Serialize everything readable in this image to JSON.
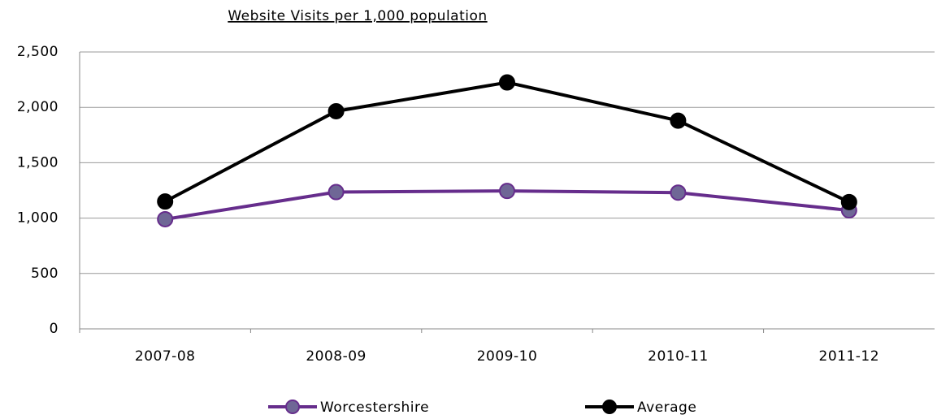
{
  "chart_data": {
    "type": "line",
    "title": "Website Visits per 1,000 population",
    "categories": [
      "2007-08",
      "2008-09",
      "2009-10",
      "2010-11",
      "2011-12"
    ],
    "series": [
      {
        "name": "Worcestershire",
        "color": "#662d8c",
        "marker_fill": "#6f6796",
        "values": [
          990,
          1235,
          1245,
          1230,
          1070
        ]
      },
      {
        "name": "Average",
        "color": "#000000",
        "marker_fill": "#000000",
        "values": [
          1150,
          1965,
          2225,
          1880,
          1145
        ]
      }
    ],
    "ylim": [
      0,
      2500
    ],
    "yticks": [
      0,
      500,
      {
        "value": 1000,
        "label": "1,000"
      },
      {
        "value": 1500,
        "label": "1,500"
      },
      {
        "value": 2000,
        "label": "2,000"
      },
      {
        "value": 2500,
        "label": "2,500"
      }
    ],
    "grid": true,
    "legend": "bottom"
  }
}
